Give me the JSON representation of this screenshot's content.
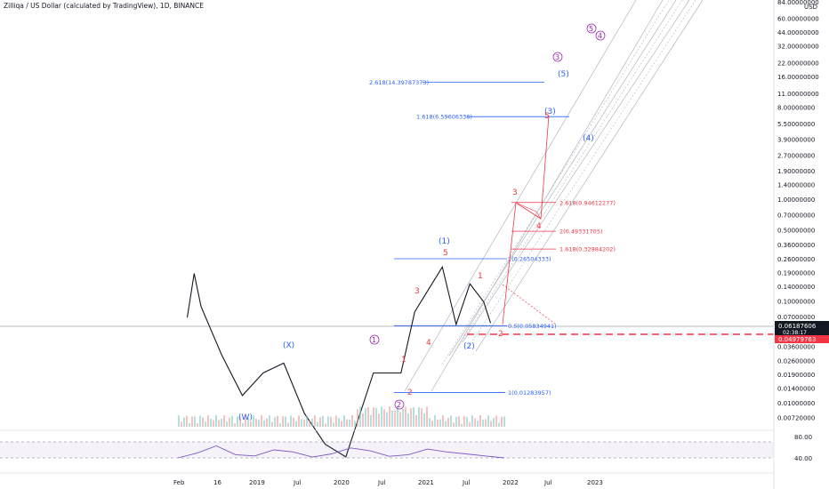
{
  "header": {
    "title": "Zilliqa / US Dollar (calculated by TradingView), 1D, BINANCE"
  },
  "axis": {
    "currency": "USD",
    "price_ticks": [
      "84.00000000",
      "60.00000000",
      "44.00000000",
      "32.00000000",
      "22.00000000",
      "16.00000000",
      "11.00000000",
      "8.00000000",
      "5.50000000",
      "3.90000000",
      "2.70000000",
      "1.90000000",
      "1.40000000",
      "1.00000000",
      "0.70000000",
      "0.50000000",
      "0.36000000",
      "0.26000000",
      "0.19000000",
      "0.14000000",
      "0.10000000",
      "0.07000000",
      "0.03600000",
      "0.02600000",
      "0.01900000",
      "0.01400000",
      "0.01000000",
      "0.00720000"
    ],
    "price_tag": "0.06187606",
    "countdown": "02:38:17",
    "stop_tag": "0.04979763",
    "rsi_ticks": [
      "80.00",
      "40.00"
    ],
    "time_labels": [
      "Feb",
      "16",
      "2019",
      "Jul",
      "2020",
      "Jul",
      "2021",
      "Jul",
      "2022",
      "Jul",
      "2023"
    ]
  },
  "colors": {
    "fib_blue": "#2962ff",
    "fib_red": "#f23645",
    "wave_purple": "#9c27b0",
    "rsi_line": "#7e57c2",
    "stop_red": "#f23645"
  },
  "chart_data": {
    "type": "line",
    "scale": "log",
    "symbol": "ZILUSD",
    "approx_price_path": [
      {
        "t": "2018-04",
        "p": 0.07
      },
      {
        "t": "2018-05",
        "p": 0.19
      },
      {
        "t": "2018-06",
        "p": 0.09
      },
      {
        "t": "2018-09",
        "p": 0.03
      },
      {
        "t": "2018-12",
        "p": 0.012
      },
      {
        "t": "2019-03",
        "p": 0.02
      },
      {
        "t": "2019-06",
        "p": 0.025
      },
      {
        "t": "2019-09",
        "p": 0.008
      },
      {
        "t": "2019-12",
        "p": 0.004
      },
      {
        "t": "2020-03",
        "p": 0.003
      },
      {
        "t": "2020-07",
        "p": 0.02
      },
      {
        "t": "2020-11",
        "p": 0.02
      },
      {
        "t": "2021-01",
        "p": 0.08
      },
      {
        "t": "2021-05",
        "p": 0.22
      },
      {
        "t": "2021-07",
        "p": 0.06
      },
      {
        "t": "2021-09",
        "p": 0.15
      },
      {
        "t": "2021-11",
        "p": 0.1
      },
      {
        "t": "2021-12",
        "p": 0.062
      }
    ],
    "fib_levels_blue": [
      {
        "label": "2.618(14.39787373)",
        "value": 14.39787373
      },
      {
        "label": "1.618(6.59606336)",
        "value": 6.59606336
      },
      {
        "label": "1(0.26504333)",
        "value": 0.26504333
      },
      {
        "label": "0.5(0.05834941)",
        "value": 0.05834941
      },
      {
        "label": "1(0.01283957)",
        "value": 0.01283957
      }
    ],
    "fib_levels_red": [
      {
        "label": "2.618(0.94612277)",
        "value": 0.94612277
      },
      {
        "label": "2(0.49331705)",
        "value": 0.49331705
      },
      {
        "label": "1.618(0.32984202)",
        "value": 0.32984202
      }
    ],
    "wave_labels_blue": [
      "(W)",
      "(X)",
      "(1)",
      "(2)",
      "(3)",
      "(4)",
      "(5)"
    ],
    "wave_labels_purple": [
      "1",
      "2",
      "3",
      "4",
      "5"
    ],
    "wave_labels_red": [
      "1",
      "2",
      "3",
      "4",
      "5",
      "1",
      "2",
      "3",
      "4",
      "5"
    ],
    "rsi": {
      "levels": [
        80,
        40
      ],
      "approx_values": [
        40,
        52,
        70,
        48,
        45,
        60,
        55,
        42,
        50,
        65,
        58,
        44,
        48,
        62,
        55,
        50,
        45,
        40
      ]
    }
  }
}
